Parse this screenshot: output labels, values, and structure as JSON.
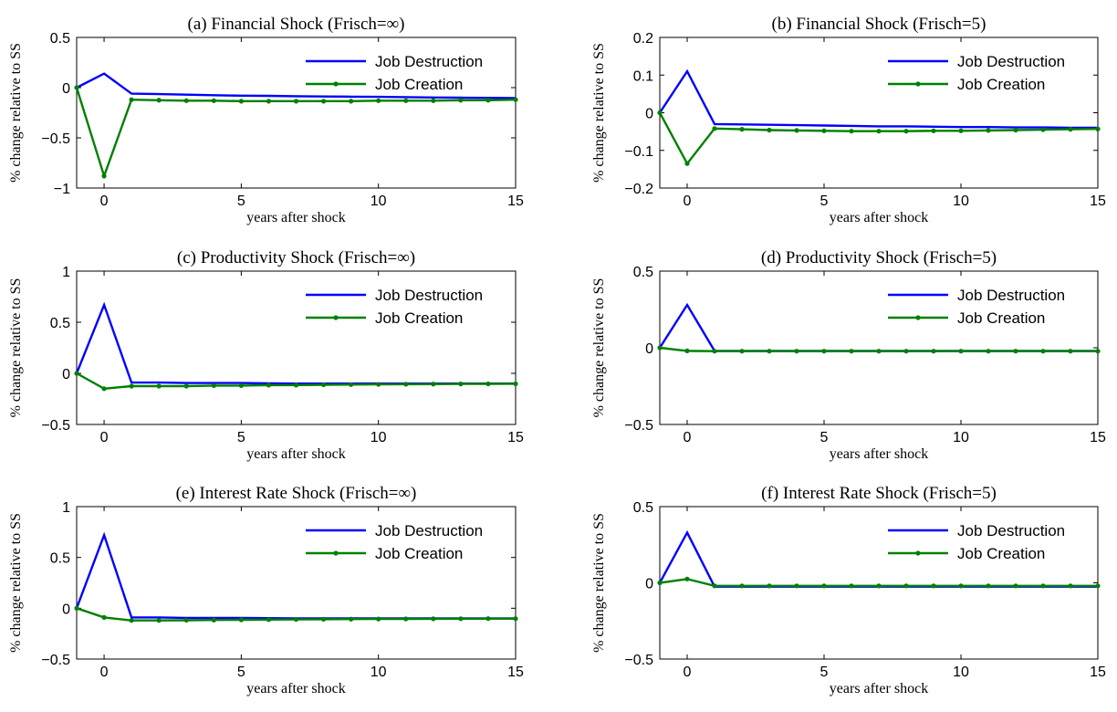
{
  "chart_data": [
    {
      "type": "line",
      "title": "(a) Financial Shock (Frisch=∞)",
      "xlabel": "years after shock",
      "ylabel": "% change relative to SS",
      "xlim": [
        -1,
        15
      ],
      "ylim": [
        -1,
        0.5
      ],
      "xticks": [
        0,
        5,
        10,
        15
      ],
      "yticks": [
        -1,
        -0.5,
        0,
        0.5
      ],
      "ytick_labels": [
        "−1",
        "−0.5",
        "0",
        "0.5"
      ],
      "legend": "top-right",
      "x": [
        -1,
        0,
        1,
        2,
        3,
        4,
        5,
        6,
        7,
        8,
        9,
        10,
        11,
        12,
        13,
        14,
        15
      ],
      "series": [
        {
          "name": "Job Destruction",
          "color": "#0000ff",
          "markers": false,
          "values": [
            0,
            0.14,
            -0.06,
            -0.065,
            -0.07,
            -0.075,
            -0.08,
            -0.082,
            -0.085,
            -0.088,
            -0.09,
            -0.092,
            -0.095,
            -0.098,
            -0.1,
            -0.102,
            -0.105
          ]
        },
        {
          "name": "Job Creation",
          "color": "#008000",
          "markers": true,
          "values": [
            0,
            -0.88,
            -0.12,
            -0.125,
            -0.13,
            -0.13,
            -0.135,
            -0.135,
            -0.135,
            -0.135,
            -0.135,
            -0.13,
            -0.13,
            -0.13,
            -0.125,
            -0.125,
            -0.12
          ]
        }
      ]
    },
    {
      "type": "line",
      "title": "(b) Financial Shock (Frisch=5)",
      "xlabel": "years after shock",
      "ylabel": "% change relative to SS",
      "xlim": [
        -1,
        15
      ],
      "ylim": [
        -0.2,
        0.2
      ],
      "xticks": [
        0,
        5,
        10,
        15
      ],
      "yticks": [
        -0.2,
        -0.1,
        0,
        0.1,
        0.2
      ],
      "ytick_labels": [
        "−0.2",
        "−0.1",
        "0",
        "0.1",
        "0.2"
      ],
      "legend": "top-right",
      "x": [
        -1,
        0,
        1,
        2,
        3,
        4,
        5,
        6,
        7,
        8,
        9,
        10,
        11,
        12,
        13,
        14,
        15
      ],
      "series": [
        {
          "name": "Job Destruction",
          "color": "#0000ff",
          "markers": false,
          "values": [
            0,
            0.11,
            -0.03,
            -0.031,
            -0.032,
            -0.033,
            -0.034,
            -0.035,
            -0.036,
            -0.036,
            -0.037,
            -0.038,
            -0.038,
            -0.039,
            -0.039,
            -0.04,
            -0.04
          ]
        },
        {
          "name": "Job Creation",
          "color": "#008000",
          "markers": true,
          "values": [
            0,
            -0.135,
            -0.042,
            -0.044,
            -0.046,
            -0.047,
            -0.048,
            -0.049,
            -0.049,
            -0.049,
            -0.048,
            -0.048,
            -0.047,
            -0.046,
            -0.045,
            -0.044,
            -0.043
          ]
        }
      ]
    },
    {
      "type": "line",
      "title": "(c) Productivity Shock (Frisch=∞)",
      "xlabel": "years after shock",
      "ylabel": "% change relative to SS",
      "xlim": [
        -1,
        15
      ],
      "ylim": [
        -0.5,
        1
      ],
      "xticks": [
        0,
        5,
        10,
        15
      ],
      "yticks": [
        -0.5,
        0,
        0.5,
        1
      ],
      "ytick_labels": [
        "−0.5",
        "0",
        "0.5",
        "1"
      ],
      "legend": "top-right",
      "x": [
        -1,
        0,
        1,
        2,
        3,
        4,
        5,
        6,
        7,
        8,
        9,
        10,
        11,
        12,
        13,
        14,
        15
      ],
      "series": [
        {
          "name": "Job Destruction",
          "color": "#0000ff",
          "markers": false,
          "values": [
            0,
            0.67,
            -0.09,
            -0.09,
            -0.095,
            -0.095,
            -0.095,
            -0.098,
            -0.1,
            -0.1,
            -0.1,
            -0.1,
            -0.1,
            -0.1,
            -0.1,
            -0.1,
            -0.1
          ]
        },
        {
          "name": "Job Creation",
          "color": "#008000",
          "markers": true,
          "values": [
            0,
            -0.15,
            -0.125,
            -0.125,
            -0.125,
            -0.12,
            -0.12,
            -0.115,
            -0.115,
            -0.112,
            -0.11,
            -0.108,
            -0.106,
            -0.105,
            -0.104,
            -0.103,
            -0.102
          ]
        }
      ]
    },
    {
      "type": "line",
      "title": "(d) Productivity Shock (Frisch=5)",
      "xlabel": "years after shock",
      "ylabel": "% change relative to SS",
      "xlim": [
        -1,
        15
      ],
      "ylim": [
        -0.5,
        0.5
      ],
      "xticks": [
        0,
        5,
        10,
        15
      ],
      "yticks": [
        -0.5,
        0,
        0.5
      ],
      "ytick_labels": [
        "−0.5",
        "0",
        "0.5"
      ],
      "legend": "top-right",
      "x": [
        -1,
        0,
        1,
        2,
        3,
        4,
        5,
        6,
        7,
        8,
        9,
        10,
        11,
        12,
        13,
        14,
        15
      ],
      "series": [
        {
          "name": "Job Destruction",
          "color": "#0000ff",
          "markers": false,
          "values": [
            0,
            0.28,
            -0.02,
            -0.02,
            -0.02,
            -0.02,
            -0.02,
            -0.02,
            -0.02,
            -0.02,
            -0.02,
            -0.02,
            -0.02,
            -0.02,
            -0.02,
            -0.02,
            -0.02
          ]
        },
        {
          "name": "Job Creation",
          "color": "#008000",
          "markers": true,
          "values": [
            0,
            -0.02,
            -0.022,
            -0.022,
            -0.022,
            -0.022,
            -0.022,
            -0.022,
            -0.022,
            -0.022,
            -0.022,
            -0.022,
            -0.022,
            -0.022,
            -0.022,
            -0.022,
            -0.022
          ]
        }
      ]
    },
    {
      "type": "line",
      "title": "(e) Interest Rate Shock (Frisch=∞)",
      "xlabel": "years after shock",
      "ylabel": "% change relative to SS",
      "xlim": [
        -1,
        15
      ],
      "ylim": [
        -0.5,
        1
      ],
      "xticks": [
        0,
        5,
        10,
        15
      ],
      "yticks": [
        -0.5,
        0,
        0.5,
        1
      ],
      "ytick_labels": [
        "−0.5",
        "0",
        "0.5",
        "1"
      ],
      "legend": "top-right",
      "x": [
        -1,
        0,
        1,
        2,
        3,
        4,
        5,
        6,
        7,
        8,
        9,
        10,
        11,
        12,
        13,
        14,
        15
      ],
      "series": [
        {
          "name": "Job Destruction",
          "color": "#0000ff",
          "markers": false,
          "values": [
            0,
            0.72,
            -0.09,
            -0.09,
            -0.095,
            -0.095,
            -0.095,
            -0.098,
            -0.1,
            -0.1,
            -0.1,
            -0.1,
            -0.1,
            -0.1,
            -0.1,
            -0.1,
            -0.1
          ]
        },
        {
          "name": "Job Creation",
          "color": "#008000",
          "markers": true,
          "values": [
            0,
            -0.09,
            -0.12,
            -0.12,
            -0.118,
            -0.116,
            -0.114,
            -0.112,
            -0.11,
            -0.108,
            -0.107,
            -0.106,
            -0.105,
            -0.104,
            -0.103,
            -0.102,
            -0.102
          ]
        }
      ]
    },
    {
      "type": "line",
      "title": "(f) Interest Rate Shock (Frisch=5)",
      "xlabel": "years after shock",
      "ylabel": "% change relative to SS",
      "xlim": [
        -1,
        15
      ],
      "ylim": [
        -0.5,
        0.5
      ],
      "xticks": [
        0,
        5,
        10,
        15
      ],
      "yticks": [
        -0.5,
        0,
        0.5
      ],
      "ytick_labels": [
        "−0.5",
        "0",
        "0.5"
      ],
      "legend": "top-right",
      "x": [
        -1,
        0,
        1,
        2,
        3,
        4,
        5,
        6,
        7,
        8,
        9,
        10,
        11,
        12,
        13,
        14,
        15
      ],
      "series": [
        {
          "name": "Job Destruction",
          "color": "#0000ff",
          "markers": false,
          "values": [
            0,
            0.33,
            -0.025,
            -0.025,
            -0.025,
            -0.025,
            -0.025,
            -0.025,
            -0.025,
            -0.025,
            -0.025,
            -0.025,
            -0.025,
            -0.025,
            -0.025,
            -0.025,
            -0.025
          ]
        },
        {
          "name": "Job Creation",
          "color": "#008000",
          "markers": true,
          "values": [
            0,
            0.025,
            -0.02,
            -0.02,
            -0.02,
            -0.02,
            -0.02,
            -0.02,
            -0.02,
            -0.02,
            -0.02,
            -0.02,
            -0.02,
            -0.02,
            -0.02,
            -0.02,
            -0.02
          ]
        }
      ]
    }
  ]
}
